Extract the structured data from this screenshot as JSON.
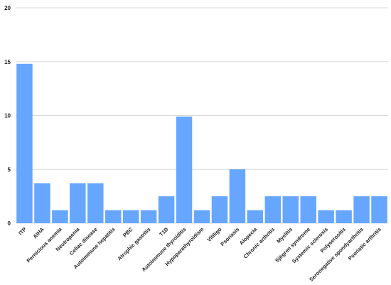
{
  "chart_data": {
    "type": "bar",
    "title": "",
    "xlabel": "",
    "ylabel": "",
    "ylim": [
      0,
      20
    ],
    "yticks": [
      0,
      5,
      10,
      15,
      20
    ],
    "grid": true,
    "bar_color": "#66a6ff",
    "categories": [
      "ITP",
      "AIHA",
      "Pernicious anemia",
      "Neutropenia",
      "Celiac disease",
      "Autoimmune hepatitis",
      "PBC",
      "Atrophic gastritis",
      "T1D",
      "Autoimmune thyroiditis",
      "Hypoparathyroidism",
      "Vitiligo",
      "Psoriasis",
      "Alopecia",
      "Chronic arthritis",
      "Myelitis",
      "Sjögren syndrome",
      "Systemic sclerosis",
      "Polyserositis",
      "Seronegative spondyarthritis",
      "Psoriatic arthritis"
    ],
    "values": [
      14.8,
      3.7,
      1.2,
      3.7,
      3.7,
      1.2,
      1.2,
      1.2,
      2.5,
      9.9,
      1.2,
      2.5,
      5.0,
      1.2,
      2.5,
      2.5,
      2.5,
      1.2,
      1.2,
      2.5,
      2.5
    ]
  }
}
